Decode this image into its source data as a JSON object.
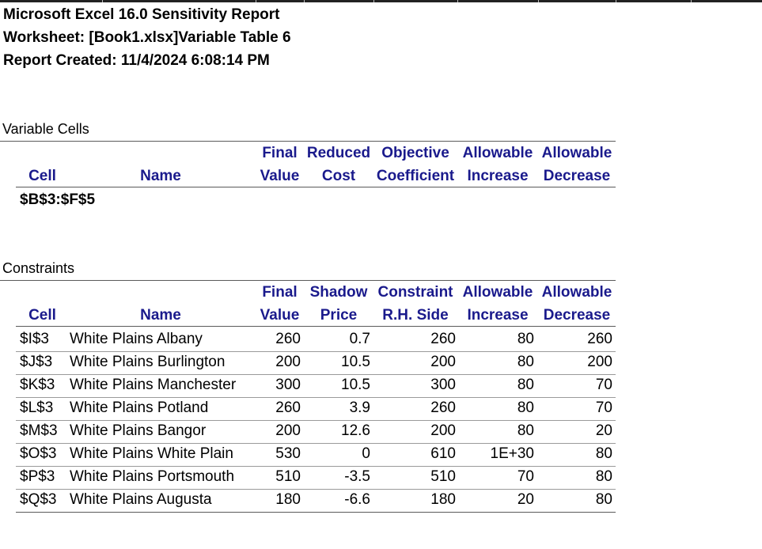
{
  "report": {
    "title": "Microsoft Excel 16.0 Sensitivity Report",
    "worksheet": "Worksheet: [Book1.xlsx]Variable Table 6",
    "created": "Report Created: 11/4/2024 6:08:14 PM"
  },
  "variable_cells": {
    "section_label": "Variable Cells",
    "headers": {
      "cell": "Cell",
      "name": "Name",
      "final_1": "Final",
      "final_2": "Value",
      "reduced_1": "Reduced",
      "reduced_2": "Cost",
      "objective_1": "Objective",
      "objective_2": "Coefficient",
      "inc_1": "Allowable",
      "inc_2": "Increase",
      "dec_1": "Allowable",
      "dec_2": "Decrease"
    },
    "range": "$B$3:$F$5"
  },
  "constraints": {
    "section_label": "Constraints",
    "headers": {
      "cell": "Cell",
      "name": "Name",
      "final_1": "Final",
      "final_2": "Value",
      "shadow_1": "Shadow",
      "shadow_2": "Price",
      "constraint_1": "Constraint",
      "constraint_2": "R.H. Side",
      "inc_1": "Allowable",
      "inc_2": "Increase",
      "dec_1": "Allowable",
      "dec_2": "Decrease"
    },
    "rows": [
      {
        "cell": "$I$3",
        "name": "White Plains Albany",
        "final": "260",
        "shadow": "0.7",
        "rhs": "260",
        "inc": "80",
        "dec": "260"
      },
      {
        "cell": "$J$3",
        "name": "White Plains Burlington",
        "final": "200",
        "shadow": "10.5",
        "rhs": "200",
        "inc": "80",
        "dec": "200"
      },
      {
        "cell": "$K$3",
        "name": "White Plains Manchester",
        "final": "300",
        "shadow": "10.5",
        "rhs": "300",
        "inc": "80",
        "dec": "70"
      },
      {
        "cell": "$L$3",
        "name": "White Plains Potland",
        "final": "260",
        "shadow": "3.9",
        "rhs": "260",
        "inc": "80",
        "dec": "70"
      },
      {
        "cell": "$M$3",
        "name": "White Plains Bangor",
        "final": "200",
        "shadow": "12.6",
        "rhs": "200",
        "inc": "80",
        "dec": "20"
      },
      {
        "cell": "$O$3",
        "name": "White Plains White Plain",
        "final": "530",
        "shadow": "0",
        "rhs": "610",
        "inc": "1E+30",
        "dec": "80"
      },
      {
        "cell": "$P$3",
        "name": "White Plains Portsmouth",
        "final": "510",
        "shadow": "-3.5",
        "rhs": "510",
        "inc": "70",
        "dec": "80"
      },
      {
        "cell": "$Q$3",
        "name": "White Plains Augusta",
        "final": "180",
        "shadow": "-6.6",
        "rhs": "180",
        "inc": "20",
        "dec": "80"
      }
    ]
  },
  "colors": {
    "header_blue": "#1a1a8c",
    "rule_gray": "#9a9a9a"
  }
}
